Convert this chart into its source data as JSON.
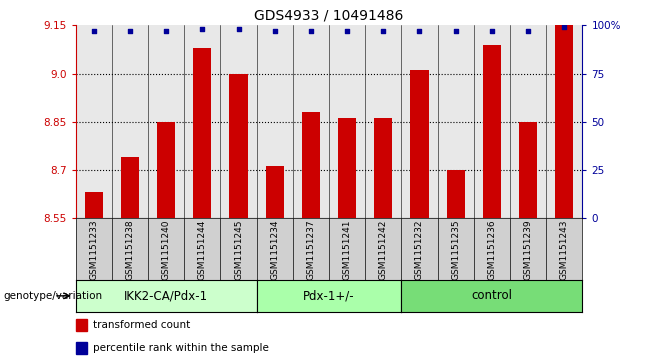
{
  "title": "GDS4933 / 10491486",
  "samples": [
    "GSM1151233",
    "GSM1151238",
    "GSM1151240",
    "GSM1151244",
    "GSM1151245",
    "GSM1151234",
    "GSM1151237",
    "GSM1151241",
    "GSM1151242",
    "GSM1151232",
    "GSM1151235",
    "GSM1151236",
    "GSM1151239",
    "GSM1151243"
  ],
  "bar_values": [
    8.63,
    8.74,
    8.85,
    9.08,
    9.0,
    8.71,
    8.88,
    8.86,
    8.86,
    9.01,
    8.7,
    9.09,
    8.85,
    9.15
  ],
  "dot_values": [
    97,
    97,
    97,
    98,
    98,
    97,
    97,
    97,
    97,
    97,
    97,
    97,
    97,
    99
  ],
  "ylim_left": [
    8.55,
    9.15
  ],
  "ylim_right": [
    0,
    100
  ],
  "yticks_left": [
    8.55,
    8.7,
    8.85,
    9.0,
    9.15
  ],
  "yticks_right": [
    0,
    25,
    50,
    75,
    100
  ],
  "ytick_labels_right": [
    "0",
    "25",
    "50",
    "75",
    "100%"
  ],
  "groups": [
    {
      "label": "IKK2-CA/Pdx-1",
      "start": 0,
      "end": 5,
      "color": "#ccffcc"
    },
    {
      "label": "Pdx-1+/-",
      "start": 5,
      "end": 9,
      "color": "#aaffaa"
    },
    {
      "label": "control",
      "start": 9,
      "end": 14,
      "color": "#77dd77"
    }
  ],
  "bar_color": "#cc0000",
  "dot_color": "#000099",
  "bar_width": 0.5,
  "plot_bg_color": "#e8e8e8",
  "tick_bg_color": "#d0d0d0",
  "legend_items": [
    {
      "label": "transformed count",
      "color": "#cc0000"
    },
    {
      "label": "percentile rank within the sample",
      "color": "#000099"
    }
  ],
  "genotype_label": "genotype/variation",
  "left_axis_color": "#cc0000",
  "right_axis_color": "#000099",
  "grid_color": "#000000",
  "ytick_fontsize": 7.5,
  "title_fontsize": 10,
  "sample_fontsize": 6.5,
  "group_fontsize": 8.5,
  "legend_fontsize": 7.5
}
